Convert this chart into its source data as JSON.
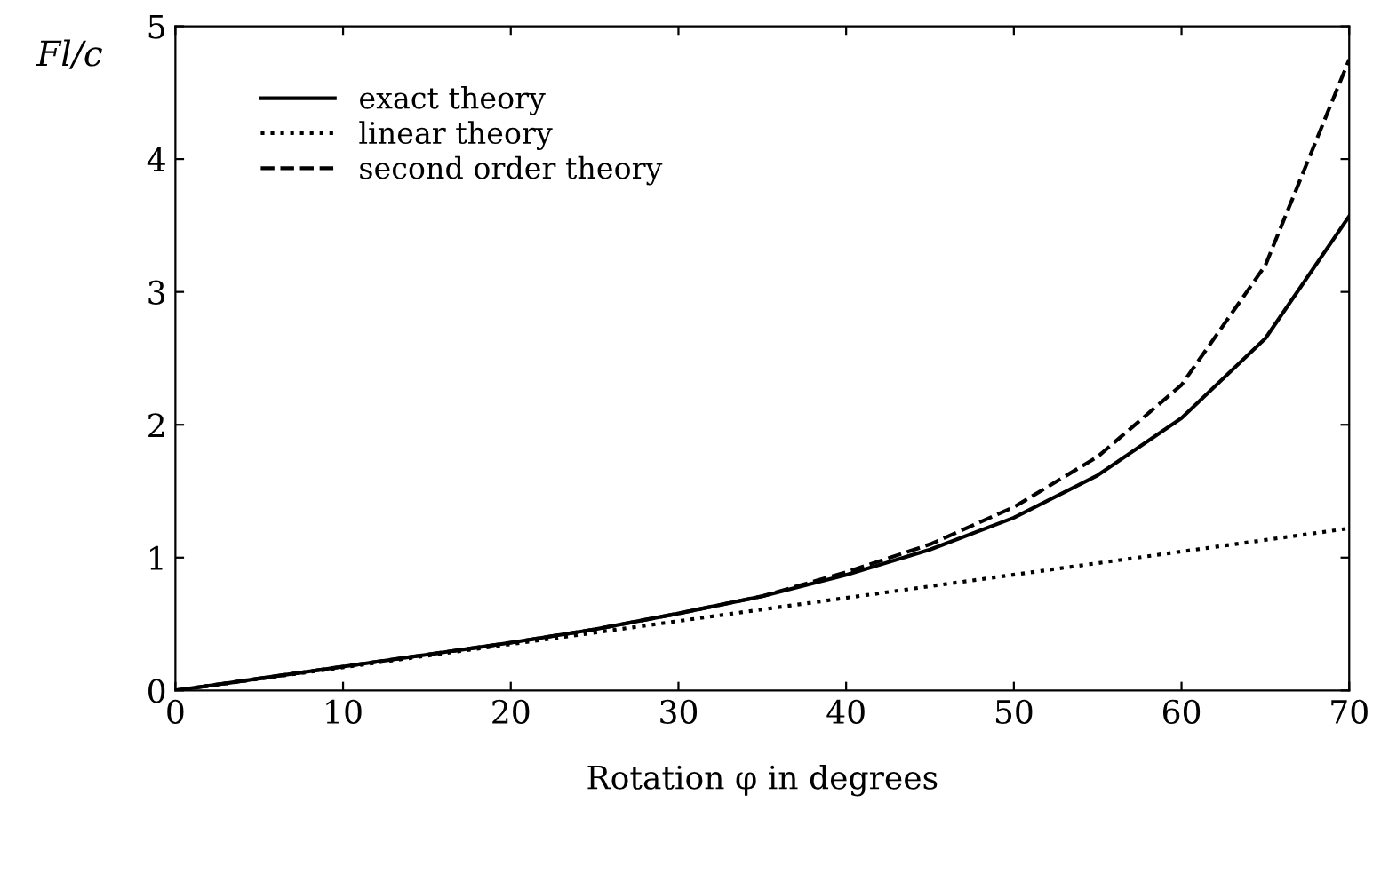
{
  "chart_data": {
    "type": "line",
    "xlabel": "Rotation φ in degrees",
    "ylabel": "Fl/c",
    "xlim": [
      0,
      70
    ],
    "ylim": [
      0,
      5
    ],
    "xticks": [
      0,
      10,
      20,
      30,
      40,
      50,
      60,
      70
    ],
    "yticks": [
      0,
      1,
      2,
      3,
      4,
      5
    ],
    "grid": false,
    "legend": "top left",
    "marker": "none",
    "series": [
      {
        "name": "exact theory",
        "color": "#000000",
        "line_style": "solid",
        "x": [
          0,
          5,
          10,
          15,
          20,
          25,
          30,
          35,
          40,
          45,
          50,
          55,
          60,
          65,
          70
        ],
        "values": [
          0,
          0.09,
          0.18,
          0.27,
          0.36,
          0.46,
          0.58,
          0.71,
          0.87,
          1.06,
          1.3,
          1.62,
          2.05,
          2.65,
          3.57
        ]
      },
      {
        "name": "linear theory",
        "color": "#000000",
        "line_style": "dotted",
        "x": [
          0,
          70
        ],
        "values": [
          0,
          1.22
        ]
      },
      {
        "name": "second order theory",
        "color": "#000000",
        "line_style": "dashed",
        "x": [
          0,
          5,
          10,
          15,
          20,
          25,
          30,
          35,
          40,
          45,
          50,
          55,
          60,
          65,
          70
        ],
        "values": [
          0,
          0.09,
          0.18,
          0.27,
          0.36,
          0.46,
          0.58,
          0.71,
          0.89,
          1.1,
          1.38,
          1.76,
          2.3,
          3.2,
          4.75
        ]
      }
    ]
  }
}
